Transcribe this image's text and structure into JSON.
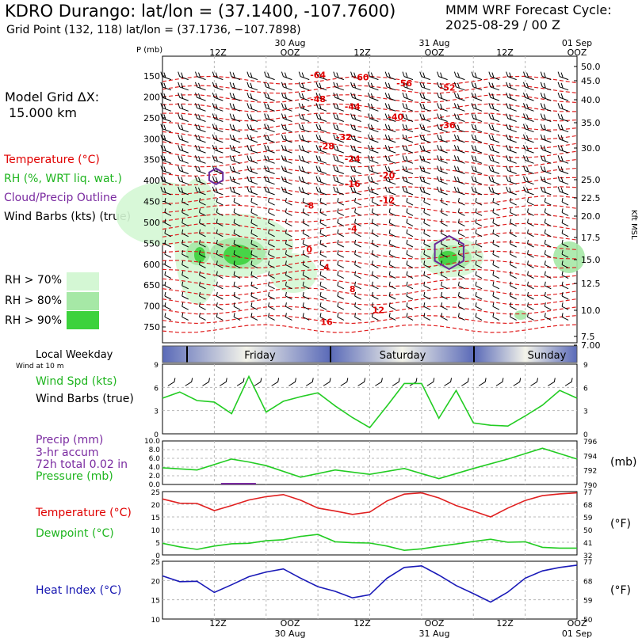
{
  "header": {
    "title": "KDRO Durango:  lat/lon = (37.1400, -107.7600)",
    "subtitle": "Grid Point (132, 118) lat/lon = (37.1736, −107.7898)",
    "cycle_line1": "MMM WRF Forecast Cycle:",
    "cycle_line2": "2025-08-29 / 00  Z",
    "grid_line1": "Model Grid ΔX:",
    "grid_line2": "15.000 km"
  },
  "legend": {
    "temperature": "Temperature (°C)",
    "rh": "RH (%, WRT liq. wat.)",
    "cloud": "Cloud/Precip Outline",
    "wind": "Wind Barbs (kts) (true)",
    "rh70": "RH > 70%",
    "rh80": "RH > 80%",
    "rh90": "RH > 90%",
    "rh70_color": "#d4f7d4",
    "rh80_color": "#a6e8a6",
    "rh90_color": "#3cd23c"
  },
  "time_axis": {
    "top_dates": [
      "30 Aug",
      "31 Aug",
      "01 Sep"
    ],
    "tick_labels": [
      "12Z",
      "OOZ",
      "12Z",
      "OOZ",
      "12Z",
      "OOZ"
    ],
    "bottom_dates": [
      "30 Aug",
      "31 Aug",
      "01 Sep"
    ],
    "weekday_title": "Local Weekday",
    "weekday_sub": "Wind at 10 m",
    "days": [
      "Friday",
      "Saturday",
      "Sunday"
    ]
  },
  "panel_labels": {
    "wind_spd": "Wind Spd (kts)",
    "wind_barbs": "Wind Barbs (true)",
    "precip1": "Precip (mm)",
    "precip2": "3-hr accum",
    "precip3": "72h total 0.02 in",
    "pressure": "Pressure (mb)",
    "pressure_unit": "(mb)",
    "temp": "Temperature (°C)",
    "dew": "Dewpoint (°C)",
    "temp_unit": "(°F)",
    "heat": "Heat Index (°C)",
    "heat_unit": "(°F)"
  },
  "chart_data": [
    {
      "type": "contour",
      "ylabel_left": "P (mb)",
      "ylabel_right": "Kft MSL",
      "pressure_ticks": [
        150,
        200,
        250,
        300,
        350,
        400,
        450,
        500,
        550,
        600,
        650,
        700,
        750
      ],
      "height_ticks": [
        "50.0",
        "45.0",
        "40.0",
        "35.0",
        "30.0",
        "25.0",
        "22.5",
        "20.0",
        "17.5",
        "15.0",
        "12.5",
        "10.0",
        "7.5",
        "7.00"
      ],
      "temperature_labels": [
        {
          "t": 9,
          "p": 155,
          "v": "-64"
        },
        {
          "t": 11.5,
          "p": 160,
          "v": "-60"
        },
        {
          "t": 14,
          "p": 175,
          "v": "-56"
        },
        {
          "t": 16.5,
          "p": 185,
          "v": "-52"
        },
        {
          "t": 9,
          "p": 212,
          "v": "-48"
        },
        {
          "t": 11,
          "p": 230,
          "v": "-44"
        },
        {
          "t": 13.5,
          "p": 255,
          "v": "-40"
        },
        {
          "t": 16.5,
          "p": 275,
          "v": "-36"
        },
        {
          "t": 10.5,
          "p": 303,
          "v": "-32"
        },
        {
          "t": 9.5,
          "p": 325,
          "v": "-28"
        },
        {
          "t": 11,
          "p": 355,
          "v": "-24"
        },
        {
          "t": 13,
          "p": 395,
          "v": "-20"
        },
        {
          "t": 11,
          "p": 415,
          "v": "-16"
        },
        {
          "t": 13,
          "p": 455,
          "v": "-12"
        },
        {
          "t": 8.5,
          "p": 467,
          "v": "-8"
        },
        {
          "t": 11,
          "p": 522,
          "v": "-4"
        },
        {
          "t": 8.5,
          "p": 572,
          "v": "0"
        },
        {
          "t": 9.5,
          "p": 615,
          "v": "4"
        },
        {
          "t": 11,
          "p": 667,
          "v": "8"
        },
        {
          "t": 12.5,
          "p": 717,
          "v": "12"
        },
        {
          "t": 9.5,
          "p": 745,
          "v": "16"
        }
      ],
      "cloud_outlines": [
        {
          "t": 3.1,
          "p": 390
        },
        {
          "t": 16.6,
          "p": 572
        }
      ]
    },
    {
      "type": "line",
      "name": "wind_speed",
      "ylabel": "Wind Spd (kts)",
      "ylim": [
        0,
        9
      ],
      "yticks": [
        0,
        3,
        6,
        9
      ],
      "x": [
        0,
        1,
        2,
        3,
        4,
        5,
        6,
        7,
        8,
        9,
        10,
        11,
        12,
        13,
        14,
        15,
        16,
        17,
        18,
        19,
        20,
        21,
        22,
        23,
        24
      ],
      "values": [
        4.6,
        5.4,
        4.3,
        4.1,
        2.6,
        7.4,
        2.8,
        4.2,
        4.8,
        5.3,
        3.6,
        2.1,
        0.8,
        3.6,
        6.5,
        6.5,
        2.0,
        5.6,
        1.4,
        1.1,
        1.0,
        2.3,
        3.7,
        5.6,
        4.6
      ]
    },
    {
      "type": "line",
      "name": "pressure",
      "ylim": [
        790,
        796
      ],
      "yticks_right": [
        790,
        792,
        794,
        796
      ],
      "yticks_left": [
        "0.0",
        "2.0",
        "4.0",
        "6.0",
        "8.0",
        "10.0"
      ],
      "x": [
        0,
        2,
        4,
        5,
        6,
        8,
        10,
        12,
        14,
        16,
        18,
        20,
        22,
        24
      ],
      "values": [
        792.3,
        792.0,
        793.5,
        793.1,
        792.6,
        791.0,
        792.0,
        791.4,
        792.2,
        790.8,
        792.2,
        793.5,
        795.0,
        793.5
      ],
      "precip_mm": [
        {
          "t": 4.4,
          "v": 0.3
        }
      ]
    },
    {
      "type": "line",
      "name": "temperature_dewpoint",
      "ylim_c": [
        0,
        25
      ],
      "yticks_c": [
        0,
        5,
        10,
        15,
        20,
        25
      ],
      "yticks_f": [
        32,
        41,
        50,
        59,
        68,
        77
      ],
      "x": [
        0,
        1,
        2,
        3,
        4,
        5,
        6,
        7,
        8,
        9,
        10,
        11,
        12,
        13,
        14,
        15,
        16,
        17,
        18,
        19,
        20,
        21,
        22,
        23,
        24
      ],
      "temperature": [
        22.1,
        20.4,
        20.3,
        17.5,
        19.5,
        21.7,
        23.0,
        23.8,
        21.6,
        18.5,
        17.3,
        16.0,
        16.9,
        21.3,
        24.0,
        24.5,
        22.5,
        19.5,
        17.3,
        15.0,
        18.5,
        21.5,
        23.4,
        24.1,
        24.5
      ],
      "dewpoint": [
        4.6,
        3.2,
        2.2,
        3.5,
        4.4,
        4.6,
        5.6,
        6.0,
        7.3,
        8.1,
        5.2,
        4.8,
        4.7,
        3.5,
        1.8,
        2.4,
        3.4,
        4.3,
        5.3,
        6.2,
        5.0,
        5.2,
        3.0,
        2.7,
        2.7
      ]
    },
    {
      "type": "line",
      "name": "heat_index",
      "ylim_c": [
        10,
        25
      ],
      "yticks_c": [
        10,
        15,
        20,
        25
      ],
      "yticks_f": [
        50,
        59,
        68,
        77
      ],
      "x": [
        0,
        1,
        2,
        3,
        4,
        5,
        6,
        7,
        8,
        9,
        10,
        11,
        12,
        13,
        14,
        15,
        16,
        17,
        18,
        19,
        20,
        21,
        22,
        23,
        24
      ],
      "values": [
        21.2,
        19.7,
        19.8,
        16.9,
        18.9,
        21.0,
        22.2,
        23.0,
        20.6,
        18.4,
        17.2,
        15.5,
        16.3,
        20.6,
        23.4,
        23.8,
        21.4,
        18.7,
        16.6,
        14.4,
        17.0,
        20.6,
        22.5,
        23.4,
        24.0
      ]
    }
  ]
}
